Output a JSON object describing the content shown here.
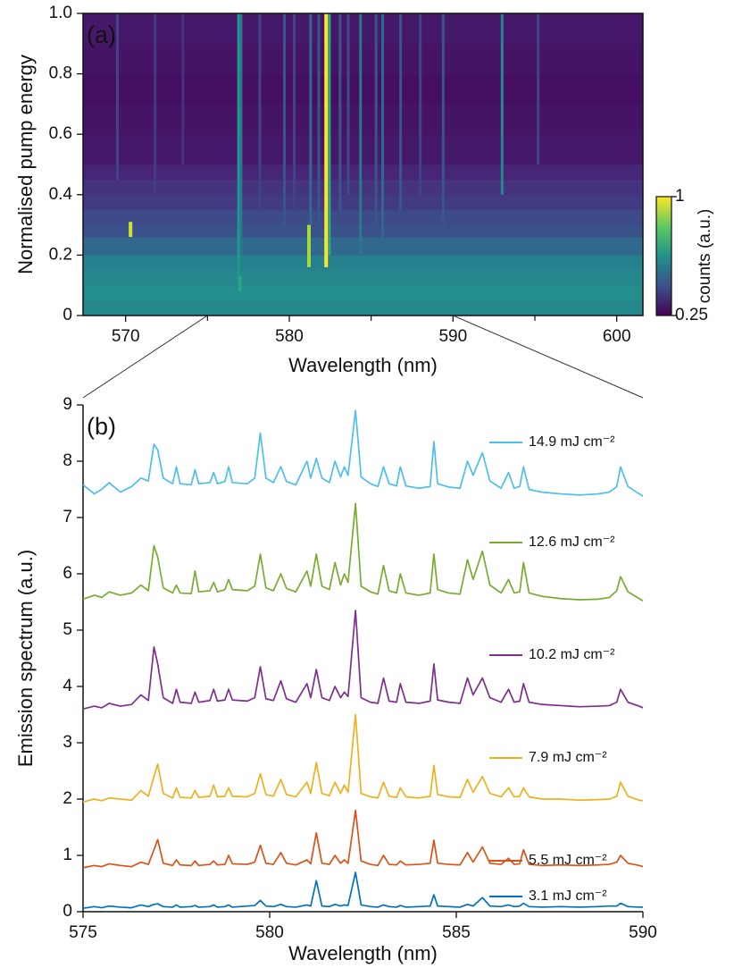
{
  "chart_data": [
    {
      "type": "heatmap",
      "annotation": "(a)",
      "x_label": "Wavelength (nm)",
      "y_label": "Normalised pump energy",
      "xlim": [
        567.4,
        601.6
      ],
      "xticks": [
        570,
        580,
        590,
        600
      ],
      "xminor_ticks": [
        575,
        585,
        595
      ],
      "ylim": [
        0,
        1
      ],
      "yticks": [
        0,
        0.2,
        0.4,
        0.6,
        0.8,
        {
          "value": 1,
          "label": "1.0"
        }
      ],
      "colormap": "viridis",
      "colorbar": {
        "label": "counts (a.u.)",
        "lim": [
          0.25,
          1
        ],
        "ticks": [
          1,
          0.25
        ]
      },
      "pump_energy_edges": [
        0,
        0.05,
        0.1,
        0.15,
        0.2,
        0.26,
        0.3,
        0.35,
        0.4,
        0.45,
        0.5,
        0.6,
        0.7,
        0.8,
        0.9,
        1
      ],
      "row_counts": [
        0.6,
        0.62,
        0.6,
        0.58,
        0.5,
        0.44,
        0.42,
        0.38,
        0.36,
        0.33,
        0.3,
        0.29,
        0.28,
        0.29,
        0.3
      ],
      "lines": {
        "wavelength": [
          569.5,
          570.3,
          571.8,
          573.5,
          576.9,
          577.05,
          578.2,
          579.7,
          580.3,
          581.2,
          581.3,
          581.8,
          582.25,
          582.45,
          583.1,
          583.6,
          584.35,
          585.3,
          585.7,
          586.8,
          588.0,
          589.4,
          593.0,
          595.2,
          577.0
        ],
        "counts": [
          0.4,
          0.95,
          0.38,
          0.36,
          0.65,
          0.55,
          0.4,
          0.45,
          0.4,
          0.9,
          0.5,
          0.45,
          1,
          0.7,
          0.45,
          0.42,
          0.55,
          0.45,
          0.5,
          0.45,
          0.4,
          0.45,
          0.6,
          0.4,
          0.7
        ],
        "pump_from": [
          0.45,
          0.26,
          0.4,
          0.5,
          0.1,
          0.2,
          0.35,
          0.3,
          0.35,
          0.16,
          0.3,
          0.3,
          0.16,
          0.2,
          0.35,
          0.4,
          0.2,
          0.3,
          0.25,
          0.35,
          0.4,
          0.3,
          0.4,
          0.5,
          0.08
        ],
        "pump_to": [
          1,
          0.31,
          1,
          1,
          1,
          1,
          1,
          1,
          1,
          0.3,
          1,
          1,
          1,
          1,
          1,
          1,
          1,
          1,
          1,
          1,
          1,
          1,
          1,
          1,
          0.13
        ]
      }
    },
    {
      "type": "line",
      "annotation": "(b)",
      "x_label": "Wavelength (nm)",
      "y_label": "Emission spectrum (a.u.)",
      "xlim": [
        575,
        590
      ],
      "xticks": [
        575,
        580,
        585,
        590
      ],
      "ylim": [
        0,
        9
      ],
      "yticks": [
        0,
        1,
        2,
        3,
        4,
        5,
        6,
        7,
        8,
        9
      ],
      "x": [
        575.0,
        575.3,
        575.5,
        575.7,
        576.0,
        576.3,
        576.55,
        576.75,
        576.9,
        577.0,
        577.15,
        577.4,
        577.5,
        577.6,
        577.9,
        578.0,
        578.1,
        578.4,
        578.5,
        578.6,
        578.8,
        578.9,
        579.0,
        579.4,
        579.6,
        579.75,
        579.9,
        580.1,
        580.3,
        580.45,
        580.7,
        581.0,
        581.1,
        581.25,
        581.4,
        581.6,
        581.75,
        581.9,
        582.0,
        582.1,
        582.3,
        582.45,
        582.7,
        582.9,
        583.05,
        583.2,
        583.4,
        583.5,
        583.65,
        584.0,
        584.3,
        584.4,
        584.5,
        584.8,
        585.1,
        585.3,
        585.45,
        585.7,
        585.9,
        586.2,
        586.4,
        586.55,
        586.7,
        586.8,
        586.95,
        587.3,
        587.8,
        588.3,
        588.8,
        589.1,
        589.3,
        589.4,
        589.6,
        589.9,
        590.0
      ],
      "series": [
        {
          "name": "14.9 mJ cm⁻²",
          "color": "#4dbeee",
          "values": [
            7.58,
            7.42,
            7.5,
            7.62,
            7.45,
            7.55,
            7.7,
            7.65,
            8.3,
            8.2,
            7.7,
            7.6,
            7.9,
            7.6,
            7.58,
            7.85,
            7.6,
            7.62,
            7.8,
            7.6,
            7.64,
            7.9,
            7.62,
            7.6,
            7.7,
            8.5,
            7.7,
            7.62,
            7.9,
            7.64,
            7.58,
            8.0,
            7.7,
            8.05,
            7.7,
            7.62,
            8.0,
            7.72,
            7.9,
            7.75,
            8.9,
            7.72,
            7.6,
            7.55,
            7.9,
            7.6,
            7.56,
            7.9,
            7.56,
            7.52,
            7.55,
            8.35,
            7.6,
            7.54,
            7.52,
            8.0,
            7.75,
            8.15,
            7.65,
            7.52,
            7.8,
            7.52,
            7.55,
            7.9,
            7.5,
            7.45,
            7.42,
            7.4,
            7.42,
            7.45,
            7.55,
            7.9,
            7.55,
            7.42,
            7.38
          ]
        },
        {
          "name": "12.6 mJ cm⁻²",
          "color": "#77ac30",
          "values": [
            5.55,
            5.62,
            5.58,
            5.68,
            5.62,
            5.66,
            5.8,
            5.7,
            6.5,
            6.3,
            5.75,
            5.66,
            5.8,
            5.66,
            5.65,
            6.05,
            5.68,
            5.7,
            5.85,
            5.68,
            5.72,
            5.9,
            5.72,
            5.7,
            5.78,
            6.35,
            5.75,
            5.7,
            6.0,
            5.74,
            5.68,
            6.05,
            5.78,
            6.35,
            5.78,
            5.72,
            6.2,
            5.8,
            6.0,
            5.85,
            7.25,
            5.78,
            5.68,
            5.64,
            6.15,
            5.7,
            5.66,
            6.0,
            5.66,
            5.62,
            5.66,
            6.35,
            5.72,
            5.66,
            5.64,
            6.25,
            5.9,
            6.4,
            5.8,
            5.66,
            5.9,
            5.66,
            5.68,
            6.2,
            5.66,
            5.6,
            5.56,
            5.54,
            5.55,
            5.58,
            5.7,
            5.95,
            5.68,
            5.56,
            5.52
          ]
        },
        {
          "name": "10.2 mJ cm⁻²",
          "color": "#7e2f8e",
          "values": [
            3.6,
            3.65,
            3.62,
            3.7,
            3.65,
            3.68,
            3.85,
            3.75,
            4.7,
            4.4,
            3.8,
            3.7,
            3.95,
            3.72,
            3.7,
            3.9,
            3.72,
            3.75,
            3.95,
            3.74,
            3.76,
            3.95,
            3.76,
            3.74,
            3.8,
            4.35,
            3.78,
            3.75,
            4.1,
            3.78,
            3.72,
            4.05,
            3.8,
            4.3,
            3.8,
            3.75,
            4.0,
            3.8,
            3.9,
            3.82,
            5.35,
            3.8,
            3.72,
            3.7,
            4.15,
            3.74,
            3.72,
            4.05,
            3.72,
            3.7,
            3.74,
            4.4,
            3.76,
            3.72,
            3.7,
            4.15,
            3.85,
            4.15,
            3.8,
            3.72,
            3.95,
            3.72,
            3.74,
            4.05,
            3.72,
            3.68,
            3.66,
            3.64,
            3.65,
            3.66,
            3.72,
            3.95,
            3.72,
            3.65,
            3.62
          ]
        },
        {
          "name": "7.9 mJ cm⁻²",
          "color": "#edb120",
          "values": [
            1.95,
            2.0,
            1.97,
            2.02,
            2.0,
            1.98,
            2.15,
            2.05,
            2.4,
            2.62,
            2.1,
            2.02,
            2.2,
            2.03,
            2.02,
            2.15,
            2.03,
            2.05,
            2.25,
            2.04,
            2.05,
            2.2,
            2.05,
            2.04,
            2.1,
            2.45,
            2.08,
            2.05,
            2.35,
            2.08,
            2.04,
            2.3,
            2.1,
            2.65,
            2.1,
            2.06,
            2.3,
            2.1,
            2.25,
            2.12,
            3.5,
            2.1,
            2.04,
            2.02,
            2.3,
            2.05,
            2.03,
            2.2,
            2.04,
            2.02,
            2.05,
            2.6,
            2.08,
            2.04,
            2.03,
            2.35,
            2.12,
            2.4,
            2.1,
            2.04,
            2.2,
            2.04,
            2.05,
            2.2,
            2.04,
            2.0,
            2.0,
            1.98,
            1.99,
            2.0,
            2.05,
            2.3,
            2.05,
            1.98,
            1.97
          ]
        },
        {
          "name": "5.5 mJ cm⁻²",
          "color": "#d95319",
          "values": [
            0.78,
            0.82,
            0.8,
            0.85,
            0.82,
            0.8,
            0.88,
            0.84,
            1.1,
            1.28,
            0.86,
            0.82,
            0.92,
            0.83,
            0.82,
            0.9,
            0.82,
            0.84,
            0.9,
            0.83,
            0.84,
            1.0,
            0.85,
            0.84,
            0.88,
            1.18,
            0.86,
            0.84,
            1.05,
            0.86,
            0.83,
            0.92,
            0.85,
            1.4,
            0.86,
            0.84,
            1.0,
            0.86,
            0.92,
            0.86,
            1.8,
            0.9,
            0.84,
            0.82,
            1.0,
            0.84,
            0.83,
            0.9,
            0.83,
            0.84,
            0.86,
            1.27,
            0.86,
            0.84,
            0.83,
            1.05,
            0.88,
            1.15,
            0.86,
            0.84,
            0.95,
            0.84,
            0.85,
            1.1,
            0.84,
            0.82,
            0.83,
            0.82,
            0.83,
            0.84,
            0.88,
            1.0,
            0.86,
            0.82,
            0.8
          ]
        },
        {
          "name": "3.1 mJ cm⁻²",
          "color": "#0072bd",
          "values": [
            0.06,
            0.09,
            0.07,
            0.1,
            0.08,
            0.07,
            0.12,
            0.09,
            0.13,
            0.14,
            0.09,
            0.08,
            0.12,
            0.08,
            0.09,
            0.11,
            0.08,
            0.09,
            0.12,
            0.08,
            0.09,
            0.12,
            0.08,
            0.1,
            0.11,
            0.2,
            0.1,
            0.09,
            0.13,
            0.09,
            0.08,
            0.12,
            0.1,
            0.55,
            0.1,
            0.09,
            0.13,
            0.1,
            0.12,
            0.11,
            0.7,
            0.12,
            0.09,
            0.08,
            0.12,
            0.09,
            0.08,
            0.11,
            0.08,
            0.09,
            0.1,
            0.3,
            0.1,
            0.09,
            0.08,
            0.13,
            0.1,
            0.25,
            0.1,
            0.09,
            0.12,
            0.09,
            0.1,
            0.15,
            0.09,
            0.08,
            0.09,
            0.08,
            0.09,
            0.1,
            0.1,
            0.15,
            0.09,
            0.08,
            0.08
          ]
        }
      ]
    }
  ]
}
